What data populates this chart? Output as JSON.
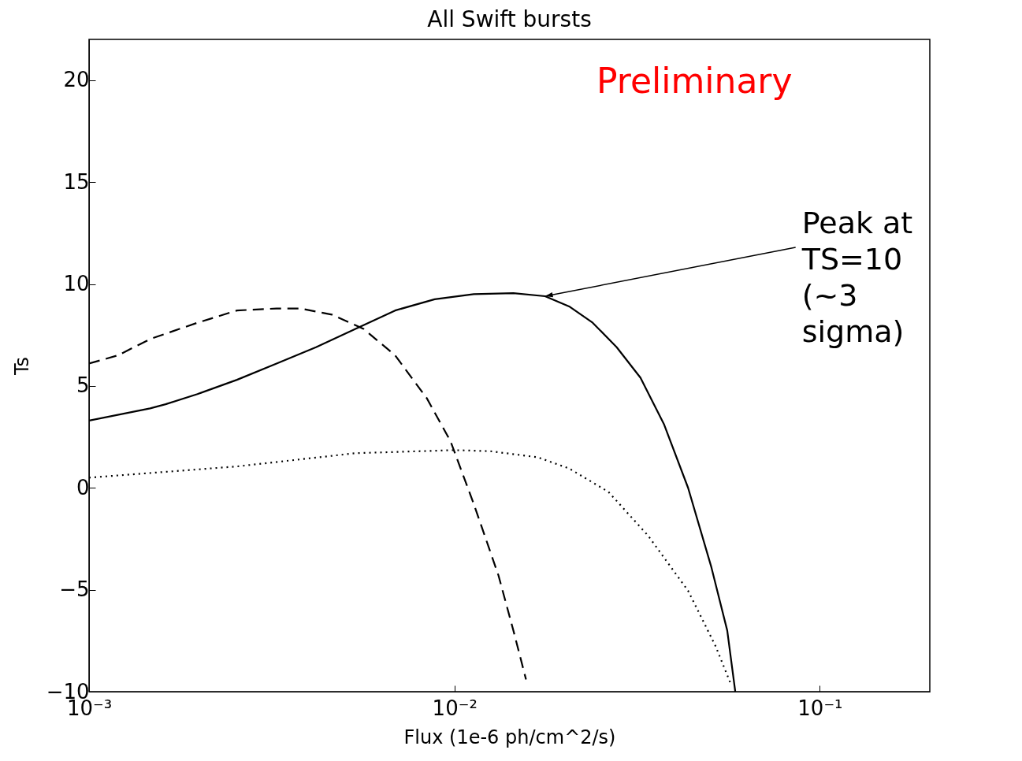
{
  "chart_data": {
    "type": "line",
    "title": "All Swift bursts",
    "xlabel": "Flux (1e-6 ph/cm^2/s)",
    "ylabel": "Ts",
    "log": "x",
    "xlim": [
      0.001,
      0.2
    ],
    "xticks": [
      {
        "value": 0.001,
        "label": "10⁻³"
      },
      {
        "value": 0.01,
        "label": "10⁻²"
      },
      {
        "value": 0.1,
        "label": "10⁻¹"
      }
    ],
    "ylim": [
      -10,
      22
    ],
    "yticks": [
      {
        "value": -10,
        "label": "−10"
      },
      {
        "value": -5,
        "label": "−5"
      },
      0,
      5,
      10,
      15,
      20
    ],
    "grid": false,
    "series": [
      {
        "color": "#000000",
        "line_style": "solid",
        "x": [
          0.001,
          0.00147,
          0.00162,
          0.00198,
          0.00254,
          0.00326,
          0.00418,
          0.00536,
          0.00688,
          0.00883,
          0.0113,
          0.0145,
          0.0177,
          0.0206,
          0.0239,
          0.0278,
          0.0323,
          0.0375,
          0.0436,
          0.0505,
          0.0558,
          0.0587
        ],
        "values": [
          3.3,
          3.9,
          4.1,
          4.6,
          5.3,
          6.1,
          6.9,
          7.8,
          8.7,
          9.25,
          9.5,
          9.55,
          9.4,
          8.9,
          8.1,
          6.9,
          5.4,
          3.1,
          0.0,
          -3.9,
          -7.0,
          -10.0
        ]
      },
      {
        "color": "#000000",
        "line_style": "dashed",
        "x": [
          0.001,
          0.0012,
          0.00147,
          0.00198,
          0.00254,
          0.00326,
          0.00378,
          0.00462,
          0.00564,
          0.00688,
          0.0084,
          0.00975,
          0.0113,
          0.0132,
          0.0145,
          0.0157
        ],
        "values": [
          6.1,
          6.5,
          7.3,
          8.1,
          8.7,
          8.8,
          8.8,
          8.5,
          7.8,
          6.5,
          4.4,
          2.3,
          -0.8,
          -4.3,
          -7.0,
          -9.4
        ]
      },
      {
        "color": "#000000",
        "line_style": "dotted",
        "x": [
          0.001,
          0.00254,
          0.00536,
          0.01,
          0.0125,
          0.0169,
          0.0206,
          0.0264,
          0.0339,
          0.0436,
          0.0518,
          0.0573
        ],
        "values": [
          0.5,
          1.05,
          1.7,
          1.85,
          1.8,
          1.5,
          0.95,
          -0.2,
          -2.35,
          -5.05,
          -7.75,
          -9.7
        ]
      }
    ],
    "annotations": [
      "Preliminary",
      {
        "text": "Peak at TS=10 (~3 sigma)",
        "x": 0.0177,
        "y": 9.4
      }
    ]
  }
}
